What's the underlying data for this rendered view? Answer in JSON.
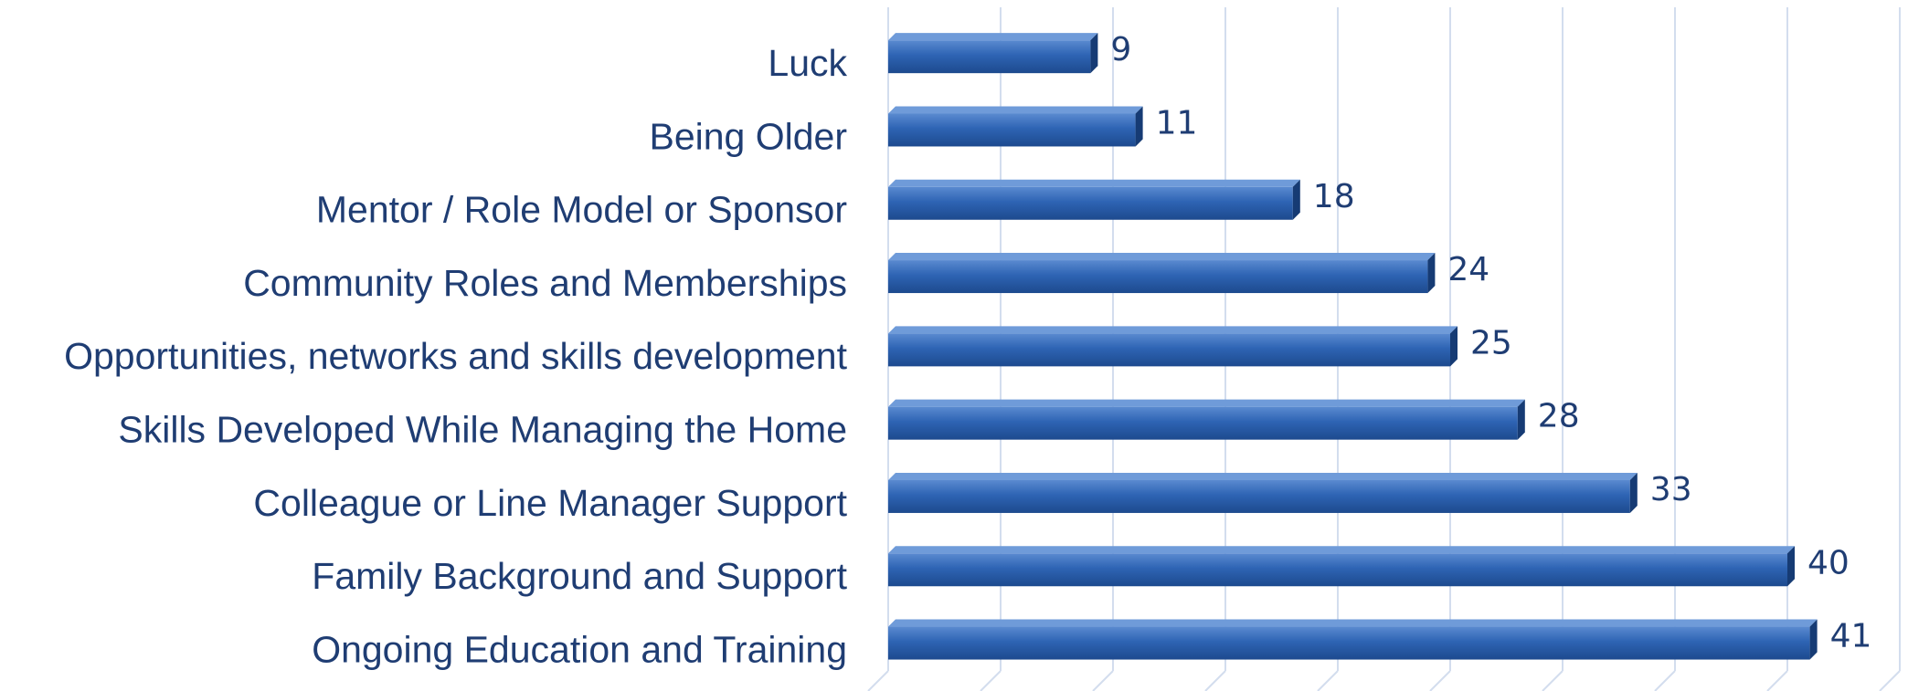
{
  "chart_data": {
    "type": "bar",
    "orientation": "horizontal",
    "categories": [
      "Luck",
      "Being Older",
      "Mentor / Role Model or Sponsor",
      "Community Roles and Memberships",
      "Opportunities, networks and skills development",
      "Skills Developed While Managing the Home",
      "Colleague or Line Manager Support",
      "Family Background and Support",
      "Ongoing Education and Training"
    ],
    "values": [
      9,
      11,
      18,
      24,
      25,
      28,
      33,
      40,
      41
    ],
    "color": "#2e64b4",
    "xlim": [
      0,
      45
    ],
    "xticks": [
      0,
      5,
      10,
      15,
      20,
      25,
      30,
      35,
      40,
      45
    ],
    "grid": true
  }
}
